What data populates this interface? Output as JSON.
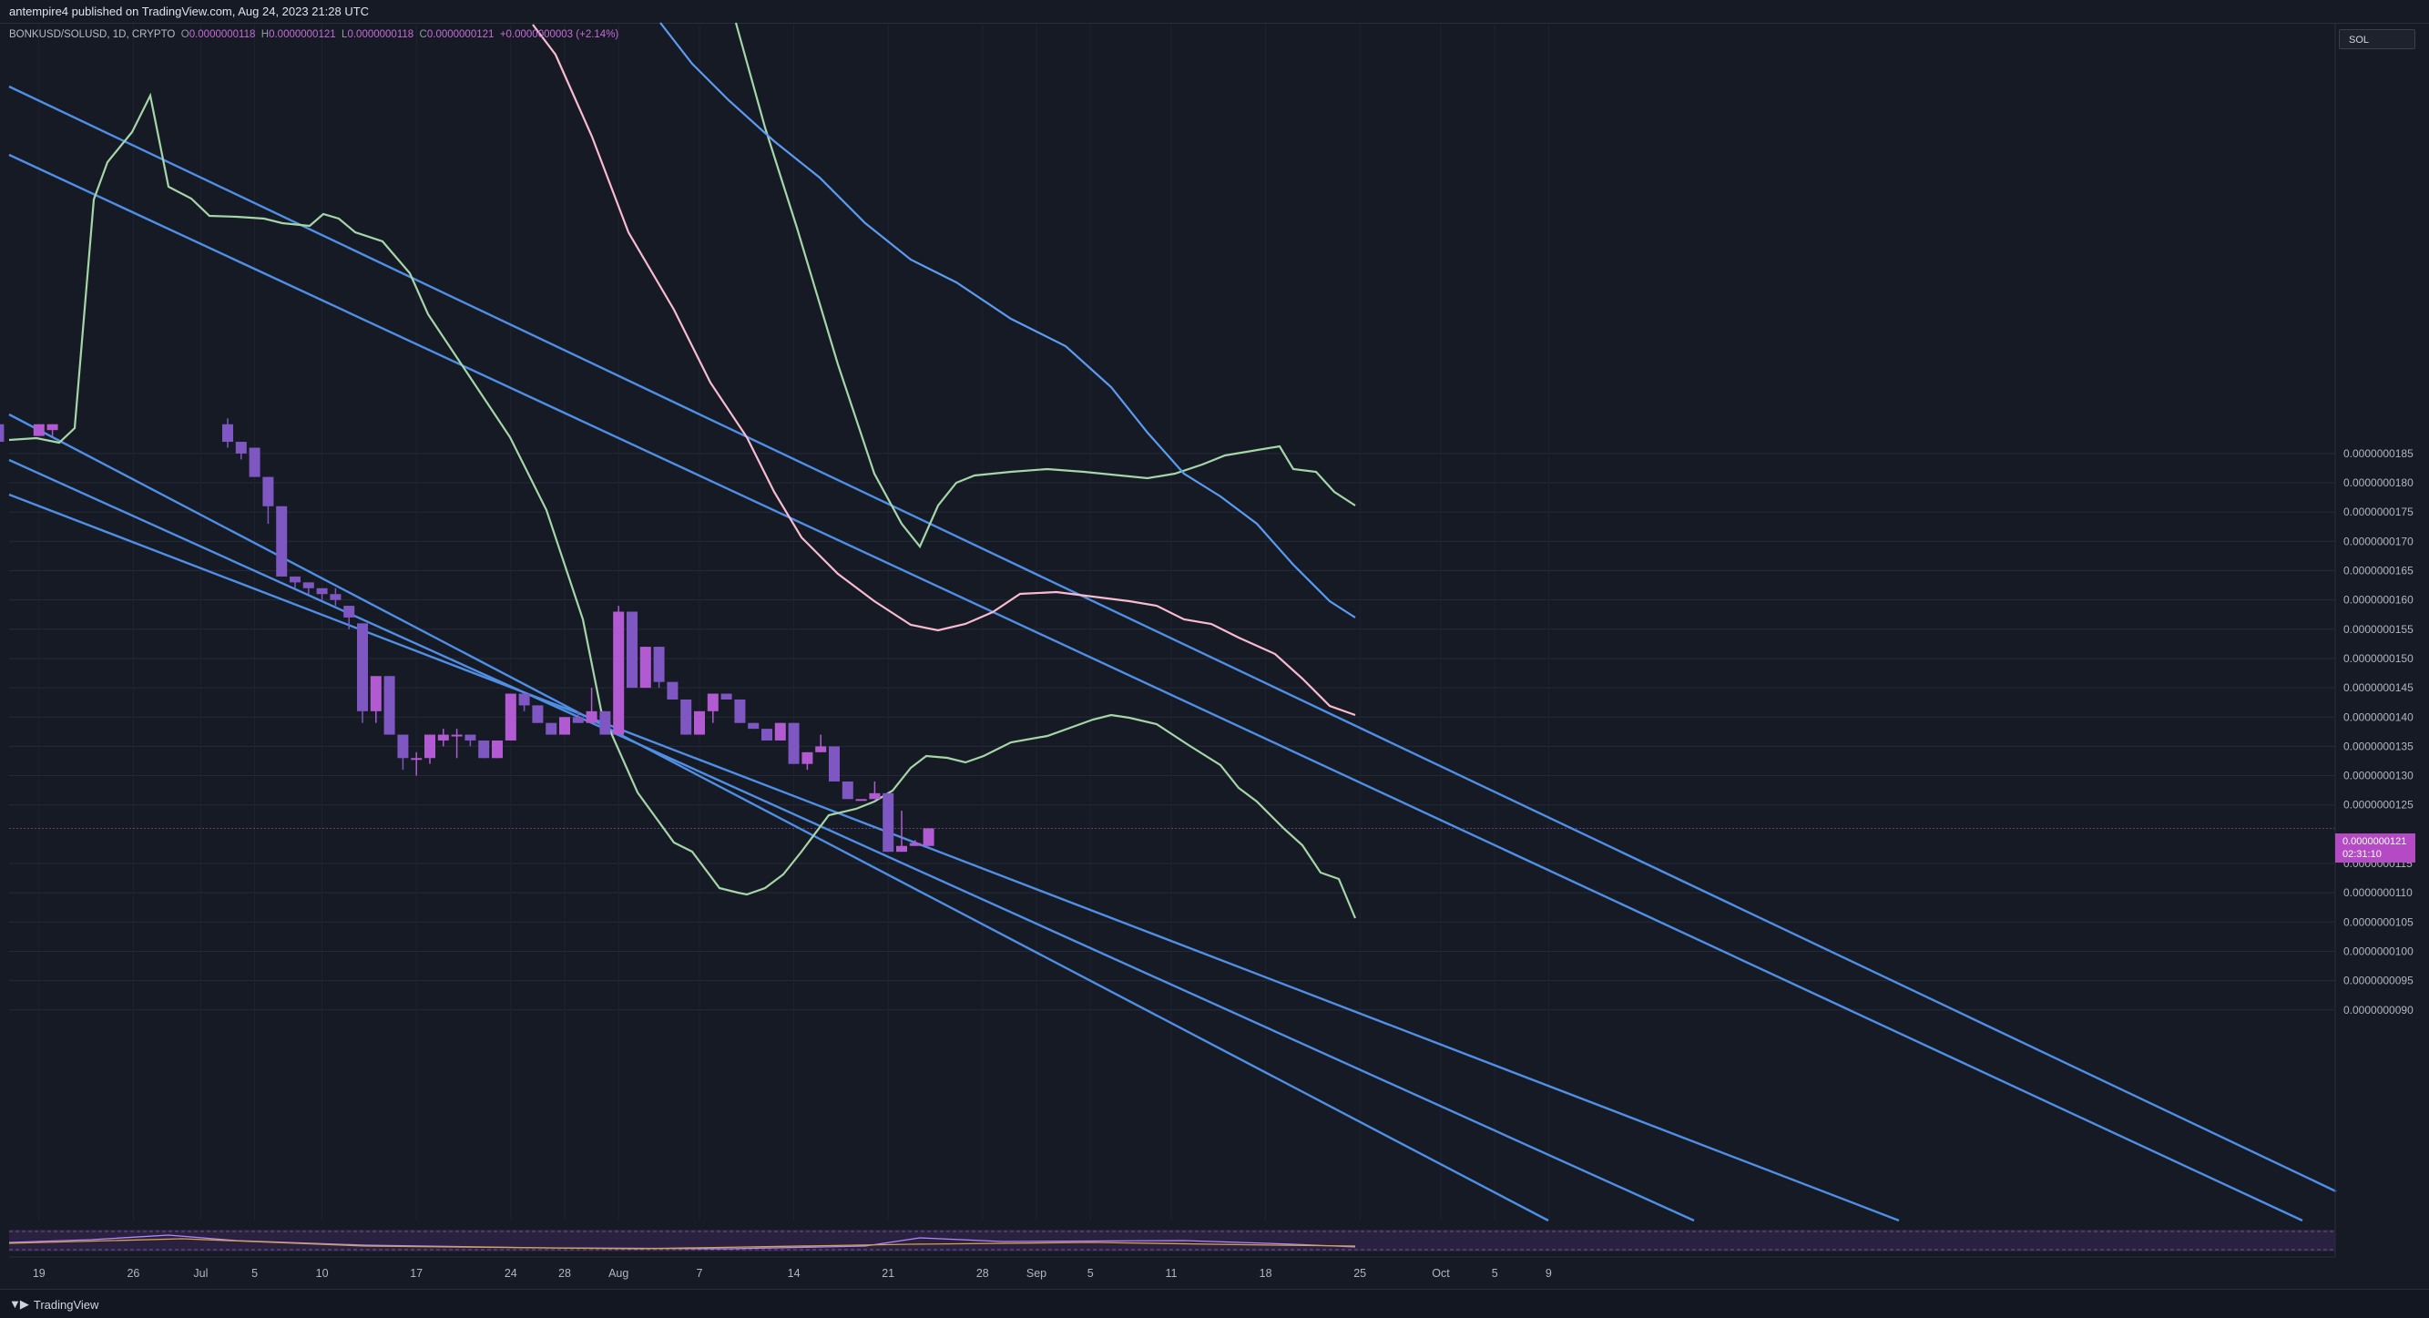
{
  "header": {
    "published_text": "antempire4 published on TradingView.com, Aug 24, 2023 21:28 UTC"
  },
  "legend": {
    "symbol": "BONKUSD/SOLUSD, 1D, CRYPTO",
    "o_label": "O",
    "o_value": "0.0000000118",
    "h_label": "H",
    "h_value": "0.0000000121",
    "l_label": "L",
    "l_value": "0.0000000118",
    "c_label": "C",
    "c_value": "0.0000000121",
    "change": "+0.0000000003 (+2.14%)"
  },
  "scale_badge": "SOL",
  "price_badge": {
    "price": "0.0000000121",
    "countdown": "02:31:10"
  },
  "footer": {
    "brand": "TradingView"
  },
  "colors": {
    "background": "#161a25",
    "candle": "#7e57c2",
    "candle_alt": "#b15ad1",
    "trendline": "#4f8fe6",
    "bb_band": "#a5d6a7",
    "ma_pink": "#f8bbd0",
    "ma_blue": "#5b9cf2"
  },
  "chart_data": {
    "type": "candlestick",
    "y_unit": "SOL",
    "ylim": [
      8.8e-09,
      1.91e-08
    ],
    "y_ticks": [
      "0.0000000185",
      "0.0000000180",
      "0.0000000175",
      "0.0000000170",
      "0.0000000165",
      "0.0000000160",
      "0.0000000155",
      "0.0000000150",
      "0.0000000145",
      "0.0000000140",
      "0.0000000135",
      "0.0000000130",
      "0.0000000125",
      "0.0000000115",
      "0.0000000110",
      "0.0000000105",
      "0.0000000100",
      "0.0000000095",
      "0.0000000090"
    ],
    "x_ticks": [
      "19",
      "26",
      "Jul",
      "5",
      "10",
      "17",
      "24",
      "28",
      "Aug",
      "7",
      "14",
      "21",
      "28",
      "Sep",
      "5",
      "11",
      "18",
      "25",
      "Oct",
      "5",
      "9"
    ],
    "grid": true,
    "candles": [
      {
        "x": "Jun 16",
        "o": 19.0,
        "h": 19.1,
        "l": 18.7,
        "c": 18.7
      },
      {
        "x": "Jun 19",
        "o": 18.8,
        "h": 19.0,
        "l": 18.8,
        "c": 19.0
      },
      {
        "x": "Jun 20",
        "o": 18.9,
        "h": 19.0,
        "l": 18.8,
        "c": 19.0
      },
      {
        "x": "Jul 3",
        "o": 19.0,
        "h": 19.1,
        "l": 18.6,
        "c": 18.7
      },
      {
        "x": "Jul 4",
        "o": 18.7,
        "h": 18.7,
        "l": 18.4,
        "c": 18.5
      },
      {
        "x": "Jul 5",
        "o": 18.6,
        "h": 18.6,
        "l": 18.1,
        "c": 18.1
      },
      {
        "x": "Jul 6",
        "o": 18.1,
        "h": 18.1,
        "l": 17.3,
        "c": 17.6
      },
      {
        "x": "Jul 7",
        "o": 17.6,
        "h": 17.6,
        "l": 16.4,
        "c": 16.4
      },
      {
        "x": "Jul 8",
        "o": 16.4,
        "h": 16.4,
        "l": 16.2,
        "c": 16.3
      },
      {
        "x": "Jul 9",
        "o": 16.3,
        "h": 16.3,
        "l": 16.1,
        "c": 16.2
      },
      {
        "x": "Jul 10",
        "o": 16.2,
        "h": 16.2,
        "l": 16.0,
        "c": 16.1
      },
      {
        "x": "Jul 11",
        "o": 16.1,
        "h": 16.2,
        "l": 15.9,
        "c": 16.0
      },
      {
        "x": "Jul 12",
        "o": 15.9,
        "h": 15.9,
        "l": 15.5,
        "c": 15.7
      },
      {
        "x": "Jul 13",
        "o": 15.6,
        "h": 15.6,
        "l": 13.9,
        "c": 14.1
      },
      {
        "x": "Jul 14",
        "o": 14.1,
        "h": 14.7,
        "l": 13.9,
        "c": 14.7
      },
      {
        "x": "Jul 15",
        "o": 14.7,
        "h": 14.7,
        "l": 13.7,
        "c": 13.7
      },
      {
        "x": "Jul 16",
        "o": 13.7,
        "h": 13.7,
        "l": 13.1,
        "c": 13.3
      },
      {
        "x": "Jul 17",
        "o": 13.3,
        "h": 13.4,
        "l": 13.0,
        "c": 13.3
      },
      {
        "x": "Jul 18",
        "o": 13.3,
        "h": 13.7,
        "l": 13.2,
        "c": 13.7
      },
      {
        "x": "Jul 19",
        "o": 13.6,
        "h": 13.8,
        "l": 13.5,
        "c": 13.7
      },
      {
        "x": "Jul 20",
        "o": 13.7,
        "h": 13.8,
        "l": 13.3,
        "c": 13.7
      },
      {
        "x": "Jul 21",
        "o": 13.7,
        "h": 13.7,
        "l": 13.5,
        "c": 13.6
      },
      {
        "x": "Jul 22",
        "o": 13.6,
        "h": 13.6,
        "l": 13.3,
        "c": 13.3
      },
      {
        "x": "Jul 23",
        "o": 13.3,
        "h": 13.6,
        "l": 13.3,
        "c": 13.6
      },
      {
        "x": "Jul 24",
        "o": 13.6,
        "h": 14.4,
        "l": 13.6,
        "c": 14.4
      },
      {
        "x": "Jul 25",
        "o": 14.4,
        "h": 14.4,
        "l": 14.1,
        "c": 14.2
      },
      {
        "x": "Jul 26",
        "o": 14.2,
        "h": 14.2,
        "l": 13.9,
        "c": 13.9
      },
      {
        "x": "Jul 27",
        "o": 13.9,
        "h": 13.9,
        "l": 13.7,
        "c": 13.7
      },
      {
        "x": "Jul 28",
        "o": 13.7,
        "h": 14.0,
        "l": 13.7,
        "c": 14.0
      },
      {
        "x": "Jul 29",
        "o": 14.0,
        "h": 14.1,
        "l": 13.9,
        "c": 13.9
      },
      {
        "x": "Jul 30",
        "o": 13.9,
        "h": 14.5,
        "l": 13.9,
        "c": 14.1
      },
      {
        "x": "Jul 31",
        "o": 14.1,
        "h": 14.1,
        "l": 13.7,
        "c": 13.7
      },
      {
        "x": "Aug 1",
        "o": 13.7,
        "h": 15.9,
        "l": 13.7,
        "c": 15.8
      },
      {
        "x": "Aug 2",
        "o": 15.8,
        "h": 15.8,
        "l": 14.5,
        "c": 14.5
      },
      {
        "x": "Aug 3",
        "o": 14.5,
        "h": 15.2,
        "l": 14.5,
        "c": 15.2
      },
      {
        "x": "Aug 4",
        "o": 15.2,
        "h": 15.2,
        "l": 14.5,
        "c": 14.6
      },
      {
        "x": "Aug 5",
        "o": 14.6,
        "h": 14.6,
        "l": 14.3,
        "c": 14.3
      },
      {
        "x": "Aug 6",
        "o": 14.3,
        "h": 14.3,
        "l": 13.7,
        "c": 13.7
      },
      {
        "x": "Aug 7",
        "o": 13.7,
        "h": 14.1,
        "l": 13.7,
        "c": 14.1
      },
      {
        "x": "Aug 8",
        "o": 14.1,
        "h": 14.4,
        "l": 13.9,
        "c": 14.4
      },
      {
        "x": "Aug 9",
        "o": 14.4,
        "h": 14.4,
        "l": 14.3,
        "c": 14.3
      },
      {
        "x": "Aug 10",
        "o": 14.3,
        "h": 14.3,
        "l": 13.9,
        "c": 13.9
      },
      {
        "x": "Aug 11",
        "o": 13.9,
        "h": 13.9,
        "l": 13.8,
        "c": 13.8
      },
      {
        "x": "Aug 12",
        "o": 13.8,
        "h": 13.8,
        "l": 13.6,
        "c": 13.6
      },
      {
        "x": "Aug 13",
        "o": 13.6,
        "h": 13.9,
        "l": 13.6,
        "c": 13.9
      },
      {
        "x": "Aug 14",
        "o": 13.9,
        "h": 13.9,
        "l": 13.2,
        "c": 13.2
      },
      {
        "x": "Aug 15",
        "o": 13.2,
        "h": 13.4,
        "l": 13.1,
        "c": 13.4
      },
      {
        "x": "Aug 16",
        "o": 13.4,
        "h": 13.7,
        "l": 13.4,
        "c": 13.5
      },
      {
        "x": "Aug 17",
        "o": 13.5,
        "h": 13.5,
        "l": 12.9,
        "c": 12.9
      },
      {
        "x": "Aug 18",
        "o": 12.9,
        "h": 12.9,
        "l": 12.6,
        "c": 12.6
      },
      {
        "x": "Aug 19",
        "o": 12.6,
        "h": 12.6,
        "l": 12.6,
        "c": 12.6
      },
      {
        "x": "Aug 20",
        "o": 12.6,
        "h": 12.9,
        "l": 12.6,
        "c": 12.7
      },
      {
        "x": "Aug 21",
        "o": 12.7,
        "h": 12.7,
        "l": 11.7,
        "c": 11.7
      },
      {
        "x": "Aug 22",
        "o": 11.7,
        "h": 12.4,
        "l": 11.7,
        "c": 11.8
      },
      {
        "x": "Aug 23",
        "o": 11.8,
        "h": 11.9,
        "l": 11.8,
        "c": 11.85
      },
      {
        "x": "Aug 24",
        "o": 11.8,
        "h": 12.1,
        "l": 11.8,
        "c": 12.1
      }
    ]
  }
}
